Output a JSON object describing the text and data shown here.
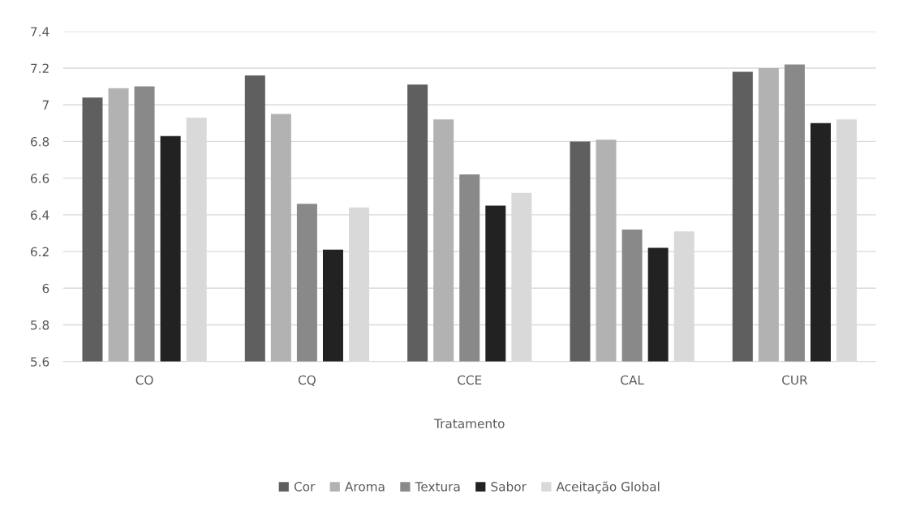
{
  "chart_data": {
    "type": "bar",
    "xlabel": "Tratamento",
    "categories": [
      "CO",
      "CQ",
      "CCE",
      "CAL",
      "CUR"
    ],
    "series": [
      {
        "name": "Cor",
        "color": "#5f5f5f",
        "values": [
          7.04,
          7.16,
          7.11,
          6.8,
          7.18
        ]
      },
      {
        "name": "Aroma",
        "color": "#b2b2b2",
        "values": [
          7.09,
          6.95,
          6.92,
          6.81,
          7.2
        ]
      },
      {
        "name": "Textura",
        "color": "#898989",
        "values": [
          7.1,
          6.46,
          6.62,
          6.32,
          7.22
        ]
      },
      {
        "name": "Sabor",
        "color": "#222222",
        "values": [
          6.83,
          6.21,
          6.45,
          6.22,
          6.9
        ]
      },
      {
        "name": "Aceitação Global",
        "color": "#d9d9d9",
        "values": [
          6.93,
          6.44,
          6.52,
          6.31,
          6.92
        ]
      }
    ],
    "ylim": [
      5.6,
      7.4
    ],
    "yticks": [
      5.6,
      5.8,
      6,
      6.2,
      6.4,
      6.6,
      6.8,
      7,
      7.2,
      7.4
    ],
    "grid": "y",
    "legend": "bottom"
  }
}
